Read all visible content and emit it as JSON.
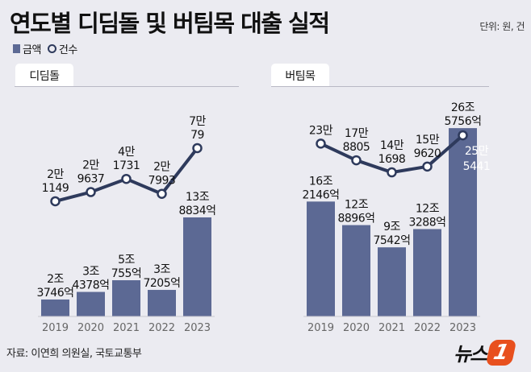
{
  "title": "연도별 디딤돌 및 버팀목 대출 실적",
  "unit": "단위: 원, 건",
  "legend": {
    "amount": "금액",
    "count": "건수"
  },
  "source": "자료: 이연희 의원실, 국토교통부",
  "logo": {
    "text": "뉴스",
    "mark": "1"
  },
  "colors": {
    "bar": "#5c6994",
    "line": "#2e3a5c",
    "background": "#ebebf1"
  },
  "chart_data": [
    {
      "type": "bar+line",
      "title": "디딤돌",
      "categories": [
        "2019",
        "2020",
        "2021",
        "2022",
        "2023"
      ],
      "series": [
        {
          "name": "금액",
          "type": "bar",
          "unit": "억원",
          "values": [
            23746,
            34378,
            50755,
            37205,
            138834
          ],
          "labels": [
            [
              "2조",
              "3746억"
            ],
            [
              "3조",
              "4378억"
            ],
            [
              "5조",
              "755억"
            ],
            [
              "3조",
              "7205억"
            ],
            [
              "13조",
              "8834억"
            ]
          ]
        },
        {
          "name": "건수",
          "type": "line",
          "unit": "건",
          "values": [
            21149,
            29637,
            41731,
            27993,
            70079
          ],
          "labels": [
            [
              "2만",
              "1149"
            ],
            [
              "2만",
              "9637"
            ],
            [
              "4만",
              "1731"
            ],
            [
              "2만",
              "7993"
            ],
            [
              "7만",
              "79"
            ]
          ]
        }
      ],
      "grid": false
    },
    {
      "type": "bar+line",
      "title": "버팀목",
      "categories": [
        "2019",
        "2020",
        "2021",
        "2022",
        "2023"
      ],
      "series": [
        {
          "name": "금액",
          "type": "bar",
          "unit": "억원",
          "values": [
            162146,
            128896,
            97542,
            123288,
            265756
          ],
          "labels": [
            [
              "16조",
              "2146억"
            ],
            [
              "12조",
              "8896억"
            ],
            [
              "9조",
              "7542억"
            ],
            [
              "12조",
              "3288억"
            ],
            [
              "26조",
              "5756억"
            ]
          ]
        },
        {
          "name": "건수",
          "type": "line",
          "unit": "건",
          "values": [
            230000,
            178805,
            141698,
            159620,
            255441
          ],
          "labels": [
            [
              "23만"
            ],
            [
              "17만",
              "8805"
            ],
            [
              "14만",
              "1698"
            ],
            [
              "15만",
              "9620"
            ],
            [
              "25만",
              "5441"
            ]
          ]
        }
      ],
      "grid": false
    }
  ]
}
